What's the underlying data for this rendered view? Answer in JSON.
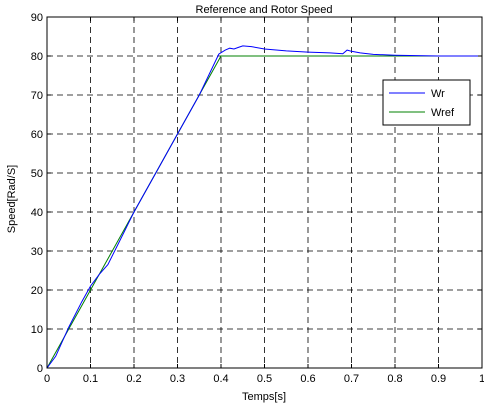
{
  "chart_data": {
    "type": "line",
    "title": "Reference and Rotor Speed",
    "xlabel": "Temps[s]",
    "ylabel": "Speed[Rad/S]",
    "xlim": [
      0,
      1
    ],
    "ylim": [
      0,
      90
    ],
    "xticks": [
      0,
      0.1,
      0.2,
      0.3,
      0.4,
      0.5,
      0.6,
      0.7,
      0.8,
      0.9,
      1
    ],
    "yticks": [
      0,
      10,
      20,
      30,
      40,
      50,
      60,
      70,
      80,
      90
    ],
    "xtick_labels": [
      "0",
      "0.1",
      "0.2",
      "0.3",
      "0.4",
      "0.5",
      "0.6",
      "0.7",
      "0.8",
      "0.9",
      "1"
    ],
    "ytick_labels": [
      "0",
      "10",
      "20",
      "30",
      "40",
      "50",
      "60",
      "70",
      "80",
      "90"
    ],
    "grid": true,
    "grid_style": "dashed",
    "legend_position": "right",
    "series": [
      {
        "name": "Wr",
        "color": "#0000ff",
        "x": [
          0,
          0.02,
          0.05,
          0.08,
          0.1,
          0.12,
          0.14,
          0.16,
          0.18,
          0.2,
          0.25,
          0.3,
          0.35,
          0.395,
          0.41,
          0.42,
          0.43,
          0.44,
          0.45,
          0.47,
          0.5,
          0.55,
          0.6,
          0.65,
          0.68,
          0.69,
          0.7,
          0.72,
          0.75,
          0.8,
          0.85,
          0.9,
          0.95,
          1.0
        ],
        "y": [
          0,
          3,
          10.5,
          17,
          21,
          24,
          26.5,
          31,
          35.5,
          40,
          50,
          60,
          70,
          80.5,
          81.5,
          82,
          81.8,
          82.2,
          82.6,
          82.4,
          81.8,
          81.3,
          81,
          80.8,
          80.6,
          81.5,
          81.2,
          80.8,
          80.4,
          80.2,
          80.1,
          80,
          80,
          80
        ]
      },
      {
        "name": "Wref",
        "color": "#008000",
        "x": [
          0,
          0.4,
          1.0
        ],
        "y": [
          0,
          80,
          80
        ]
      }
    ]
  }
}
